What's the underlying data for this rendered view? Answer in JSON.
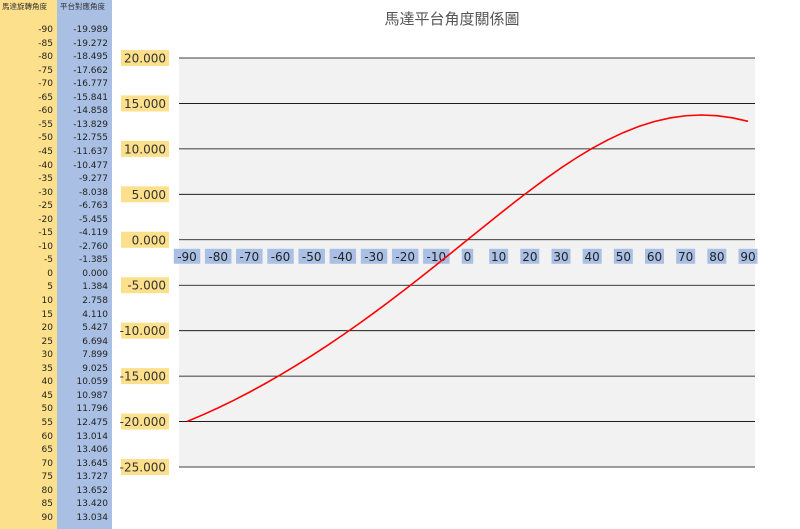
{
  "sheet": {
    "header_a": "馬達旋轉角度",
    "header_b": "平台對應角度",
    "motor_angles": [
      "-90",
      "-85",
      "-80",
      "-75",
      "-70",
      "-65",
      "-60",
      "-55",
      "-50",
      "-45",
      "-40",
      "-35",
      "-30",
      "-25",
      "-20",
      "-15",
      "-10",
      "-5",
      "0",
      "5",
      "10",
      "15",
      "20",
      "25",
      "30",
      "35",
      "40",
      "45",
      "50",
      "55",
      "60",
      "65",
      "70",
      "75",
      "80",
      "85",
      "90"
    ],
    "platform_angles": [
      "-19.989",
      "-19.272",
      "-18.495",
      "-17.662",
      "-16.777",
      "-15.841",
      "-14.858",
      "-13.829",
      "-12.755",
      "-11.637",
      "-10.477",
      "-9.277",
      "-8.038",
      "-6.763",
      "-5.455",
      "-4.119",
      "-2.760",
      "-1.385",
      "0.000",
      "1.384",
      "2.758",
      "4.110",
      "5.427",
      "6.694",
      "7.899",
      "9.025",
      "10.059",
      "10.987",
      "11.796",
      "12.475",
      "13.014",
      "13.406",
      "13.645",
      "13.727",
      "13.652",
      "13.420",
      "13.034"
    ]
  },
  "colors": {
    "line": "#ff0000",
    "plot_bg": "#f2f2f2",
    "gridline": "#000000",
    "y_label_bg": "#fde08b",
    "x_label_bg": "#a9c0e4"
  },
  "chart_data": {
    "type": "line",
    "title": "馬達平台角度關係圖",
    "xlabel": "",
    "ylabel": "",
    "x": [
      -90,
      -85,
      -80,
      -75,
      -70,
      -65,
      -60,
      -55,
      -50,
      -45,
      -40,
      -35,
      -30,
      -25,
      -20,
      -15,
      -10,
      -5,
      0,
      5,
      10,
      15,
      20,
      25,
      30,
      35,
      40,
      45,
      50,
      55,
      60,
      65,
      70,
      75,
      80,
      85,
      90
    ],
    "x_tick_labels": [
      "-90",
      "-80",
      "-70",
      "-60",
      "-50",
      "-40",
      "-30",
      "-20",
      "-10",
      "0",
      "10",
      "20",
      "30",
      "40",
      "50",
      "60",
      "70",
      "80",
      "90"
    ],
    "y_tick_labels": [
      "20.000",
      "15.000",
      "10.000",
      "5.000",
      "0.000",
      "-5.000",
      "-10.000",
      "-15.000",
      "-20.000",
      "-25.000"
    ],
    "ylim": [
      -25,
      20
    ],
    "xlim": [
      -90,
      90
    ],
    "grid": true,
    "legend": "none",
    "series": [
      {
        "values": [
          -19.989,
          -19.272,
          -18.495,
          -17.662,
          -16.777,
          -15.841,
          -14.858,
          -13.829,
          -12.755,
          -11.637,
          -10.477,
          -9.277,
          -8.038,
          -6.763,
          -5.455,
          -4.119,
          -2.76,
          -1.385,
          0.0,
          1.384,
          2.758,
          4.11,
          5.427,
          6.694,
          7.899,
          9.025,
          10.059,
          10.987,
          11.796,
          12.475,
          13.014,
          13.406,
          13.645,
          13.727,
          13.652,
          13.42,
          13.034
        ]
      }
    ]
  }
}
